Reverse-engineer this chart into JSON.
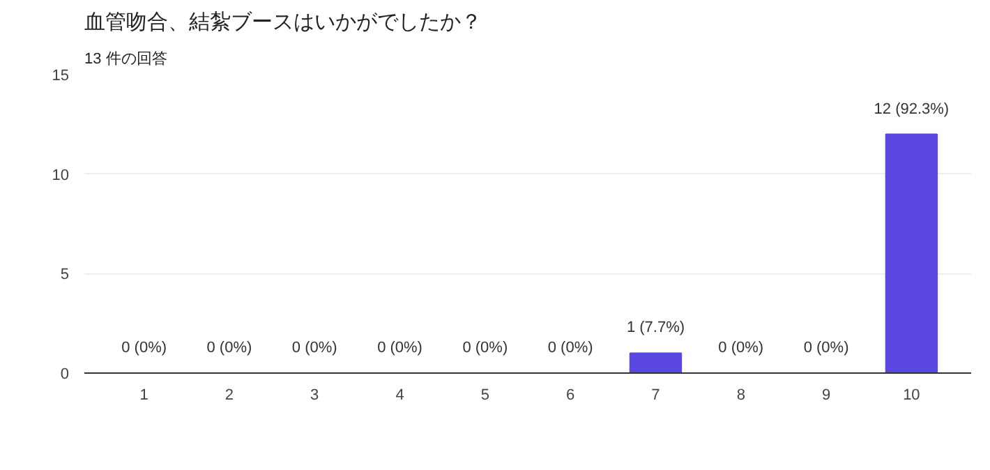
{
  "chart_data": {
    "type": "bar",
    "title": "血管吻合、結紮ブースはいかがでしたか？",
    "subtitle": "13 件の回答",
    "categories": [
      "1",
      "2",
      "3",
      "4",
      "5",
      "6",
      "7",
      "8",
      "9",
      "10"
    ],
    "values": [
      0,
      0,
      0,
      0,
      0,
      0,
      1,
      0,
      0,
      12
    ],
    "value_labels": [
      "0 (0%)",
      "0 (0%)",
      "0 (0%)",
      "0 (0%)",
      "0 (0%)",
      "0 (0%)",
      "1 (7.7%)",
      "0 (0%)",
      "0 (0%)",
      "12 (92.3%)"
    ],
    "color": "#5b47e2",
    "ylim": [
      0,
      15
    ],
    "yticks": [
      0,
      5,
      10,
      15
    ],
    "grid": "y"
  }
}
